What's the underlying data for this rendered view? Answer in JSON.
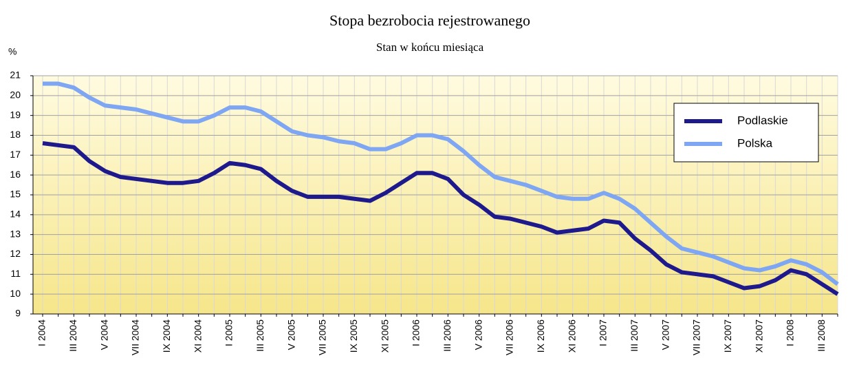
{
  "chart_data": {
    "type": "line",
    "title": "Stopa bezrobocia rejestrowanego",
    "subtitle": "Stan w końcu miesiąca",
    "y_label": "%",
    "categories": [
      "I 2004",
      null,
      "III 2004",
      null,
      "V 2004",
      null,
      "VII 2004",
      null,
      "IX 2004",
      null,
      "XI 2004",
      null,
      "I 2005",
      null,
      "III 2005",
      null,
      "V 2005",
      null,
      "VII 2005",
      null,
      "IX 2005",
      null,
      "XI 2005",
      null,
      "I 2006",
      null,
      "III 2006",
      null,
      "V 2006",
      null,
      "VII 2006",
      null,
      "IX 2006",
      null,
      "XI 2006",
      null,
      "I 2007",
      null,
      "III 2007",
      null,
      "V 2007",
      null,
      "VII 2007",
      null,
      "IX 2007",
      null,
      "XI 2007",
      null,
      "I 2008",
      null,
      "III 2008",
      null
    ],
    "series": [
      {
        "name": "Podlaskie",
        "color": "#1f1a8c",
        "values": [
          17.6,
          17.5,
          17.4,
          16.7,
          16.2,
          15.9,
          15.8,
          15.7,
          15.6,
          15.6,
          15.7,
          16.1,
          16.6,
          16.5,
          16.3,
          15.7,
          15.2,
          14.9,
          14.9,
          14.9,
          14.8,
          14.7,
          15.1,
          15.6,
          16.1,
          16.1,
          15.8,
          15.0,
          14.5,
          13.9,
          13.8,
          13.6,
          13.4,
          13.1,
          13.2,
          13.3,
          13.7,
          13.6,
          12.8,
          12.2,
          11.5,
          11.1,
          11.0,
          10.9,
          10.6,
          10.3,
          10.4,
          10.7,
          11.2,
          11.0,
          10.5,
          10.0
        ]
      },
      {
        "name": "Polska",
        "color": "#7ea6f2",
        "values": [
          20.6,
          20.6,
          20.4,
          19.9,
          19.5,
          19.4,
          19.3,
          19.1,
          18.9,
          18.7,
          18.7,
          19.0,
          19.4,
          19.4,
          19.2,
          18.7,
          18.2,
          18.0,
          17.9,
          17.7,
          17.6,
          17.3,
          17.3,
          17.6,
          18.0,
          18.0,
          17.8,
          17.2,
          16.5,
          15.9,
          15.7,
          15.5,
          15.2,
          14.9,
          14.8,
          14.8,
          15.1,
          14.8,
          14.3,
          13.6,
          12.9,
          12.3,
          12.1,
          11.9,
          11.6,
          11.3,
          11.2,
          11.4,
          11.7,
          11.5,
          11.1,
          10.5
        ]
      }
    ],
    "ylim": [
      9,
      21
    ],
    "yticks": [
      9,
      10,
      11,
      12,
      13,
      14,
      15,
      16,
      17,
      18,
      19,
      20,
      21
    ],
    "grid": true,
    "legend": "upper right"
  }
}
